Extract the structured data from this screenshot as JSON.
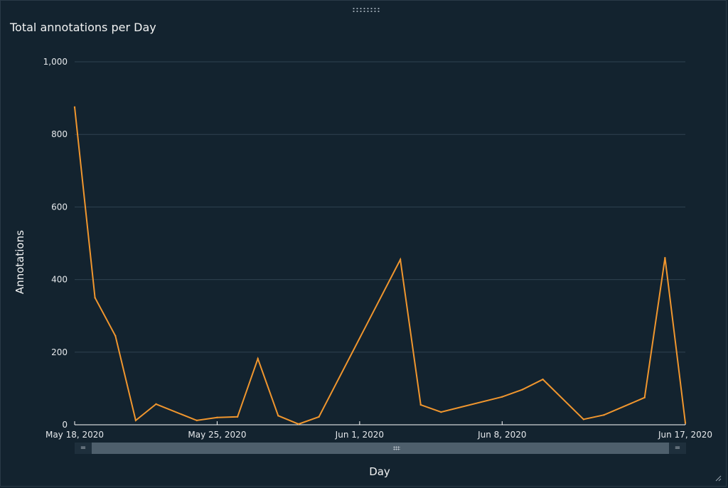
{
  "panel": {
    "title": "Total annotations per Day"
  },
  "colors": {
    "background": "#13232f",
    "line": "#f0962e",
    "grid": "#2f4351",
    "axis": "#ffffff"
  },
  "scrollbar": {
    "left_handle": "=",
    "right_handle": "="
  },
  "chart_data": {
    "type": "line",
    "title": "Total annotations per Day",
    "xlabel": "Day",
    "ylabel": "Annotations",
    "ylim": [
      0,
      1000
    ],
    "yticks": [
      0,
      200,
      400,
      600,
      800,
      1000
    ],
    "ytick_labels": [
      "0",
      "200",
      "400",
      "600",
      "800",
      "1,000"
    ],
    "x_tick_labels": [
      {
        "date": "2020-05-18",
        "label": "May 18, 2020"
      },
      {
        "date": "2020-05-25",
        "label": "May 25, 2020"
      },
      {
        "date": "2020-06-01",
        "label": "Jun 1, 2020"
      },
      {
        "date": "2020-06-08",
        "label": "Jun 8, 2020"
      },
      {
        "date": "2020-06-17",
        "label": "Jun 17, 2020"
      }
    ],
    "grid": true,
    "series": [
      {
        "values": [
          {
            "x": "2020-05-18",
            "y": 875
          },
          {
            "x": "2020-05-19",
            "y": 350
          },
          {
            "x": "2020-05-20",
            "y": 245
          },
          {
            "x": "2020-05-21",
            "y": 12
          },
          {
            "x": "2020-05-22",
            "y": 57
          },
          {
            "x": "2020-05-24",
            "y": 12
          },
          {
            "x": "2020-05-25",
            "y": 20
          },
          {
            "x": "2020-05-26",
            "y": 22
          },
          {
            "x": "2020-05-27",
            "y": 182
          },
          {
            "x": "2020-05-28",
            "y": 25
          },
          {
            "x": "2020-05-29",
            "y": 2
          },
          {
            "x": "2020-05-30",
            "y": 22
          },
          {
            "x": "2020-06-03",
            "y": 455
          },
          {
            "x": "2020-06-04",
            "y": 55
          },
          {
            "x": "2020-06-05",
            "y": 35
          },
          {
            "x": "2020-06-08",
            "y": 77
          },
          {
            "x": "2020-06-09",
            "y": 97
          },
          {
            "x": "2020-06-10",
            "y": 125
          },
          {
            "x": "2020-06-12",
            "y": 15
          },
          {
            "x": "2020-06-13",
            "y": 27
          },
          {
            "x": "2020-06-15",
            "y": 75
          },
          {
            "x": "2020-06-16",
            "y": 460
          },
          {
            "x": "2020-06-17",
            "y": 5
          }
        ]
      }
    ]
  }
}
